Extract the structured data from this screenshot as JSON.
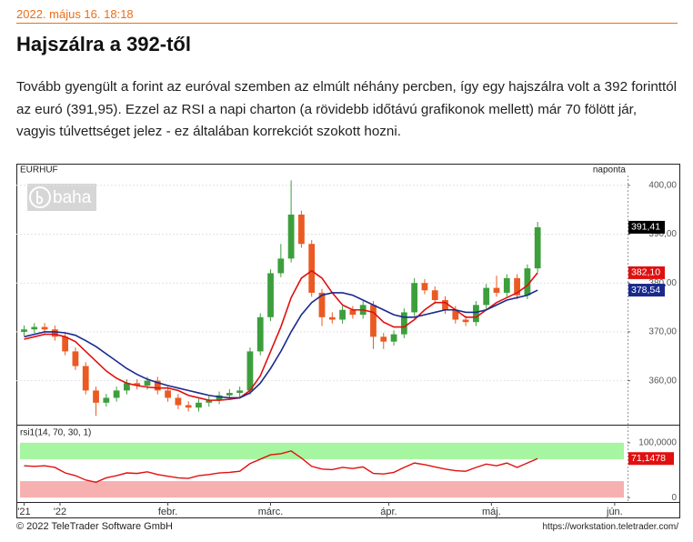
{
  "article": {
    "timestamp": "2022. május 16. 18:18",
    "title": "Hajszálra a 392-től",
    "paragraph": "Tovább gyengült a forint az euróval szemben az elmúlt néhány percben, így egy hajszálra volt a 392 forinttól az euró (391,95). Ezzel az RSI a napi charton (a rövidebb időtávú grafikonok mellett) már 70 fölött jár, vagyis túlvettséget jelez - ez általában korrekciót szokott hozni."
  },
  "chart_data": [
    {
      "type": "candlestick",
      "symbol": "EURHUF",
      "period": "naponta",
      "watermark": "baha",
      "up_color": "#3c9f3c",
      "down_color": "#ea5a22",
      "x": [
        -7,
        -5,
        -3,
        -1,
        1,
        3,
        5,
        7,
        9,
        11,
        13,
        15,
        17,
        19,
        21,
        23,
        25,
        27,
        29,
        31,
        33,
        35,
        37,
        39,
        41,
        43,
        45,
        47,
        49,
        51,
        53,
        55,
        57,
        59,
        61,
        63,
        65,
        67,
        69,
        71,
        73,
        75,
        77,
        79,
        81,
        83,
        85,
        87,
        89,
        91,
        93
      ],
      "open": [
        370,
        370.5,
        371,
        370.5,
        369,
        366,
        363,
        358,
        355.5,
        356.5,
        358,
        359.5,
        359,
        360,
        358,
        356.5,
        355,
        354.5,
        355.5,
        356,
        357,
        357.5,
        358,
        366,
        373,
        382,
        385,
        394,
        388,
        378,
        373,
        372.5,
        374.5,
        373.5,
        375.5,
        369,
        368,
        369.5,
        374,
        380,
        378.5,
        376.5,
        374.5,
        372.5,
        372,
        375.5,
        379,
        378,
        381,
        377.5,
        383
      ],
      "high": [
        371.3,
        371.8,
        371.8,
        371.3,
        369.8,
        366.8,
        363.8,
        358.8,
        357.3,
        358.8,
        360.3,
        360.3,
        360.8,
        360.8,
        358.8,
        357.3,
        355.8,
        356.3,
        356.8,
        357.8,
        358.3,
        358.8,
        366.8,
        373.8,
        382.8,
        388,
        401,
        394.8,
        388.8,
        378.8,
        374,
        375.3,
        375.3,
        376.3,
        376.3,
        369.8,
        370.3,
        374.8,
        381,
        380.8,
        379.3,
        377.3,
        375.3,
        373.3,
        376.3,
        379.8,
        381.5,
        381.8,
        381.8,
        383.8,
        392.5
      ],
      "low": [
        369.2,
        369.7,
        369.7,
        368.2,
        365.2,
        362.2,
        357.2,
        352.8,
        354.7,
        355.7,
        357.2,
        358.2,
        358.2,
        357.2,
        355.7,
        354.2,
        353.7,
        353.7,
        354.7,
        355.2,
        356.2,
        356.7,
        357.2,
        365.2,
        372.2,
        381.2,
        384.2,
        387.2,
        377.2,
        371.2,
        371.7,
        371.7,
        372.7,
        372.7,
        366.5,
        366.5,
        367.2,
        368.7,
        373.2,
        377.7,
        375.7,
        373.7,
        371.7,
        371.2,
        371.2,
        374.7,
        377.2,
        377.2,
        376.7,
        376.7,
        382.2
      ],
      "close": [
        370.5,
        371,
        370.5,
        369,
        366,
        363,
        358,
        355.5,
        356.5,
        358,
        359.5,
        359,
        360,
        358,
        356.5,
        355,
        354.5,
        355.5,
        356,
        357,
        357.5,
        358,
        366,
        373,
        382,
        385,
        394,
        388,
        378,
        373,
        372.5,
        374.5,
        373.5,
        375.5,
        369,
        368,
        369.5,
        374,
        380,
        378.5,
        376.5,
        374.5,
        372.5,
        372,
        375.5,
        379,
        378,
        381,
        377.5,
        383,
        391.41
      ],
      "close_label": "391,41",
      "series": [
        {
          "color": "#e01010",
          "last_label": "382,10",
          "values": [
            368.5,
            369,
            369.5,
            369.5,
            369,
            368,
            366,
            364,
            362,
            360.5,
            359.5,
            359,
            358.7,
            358.5,
            358.5,
            358,
            357,
            356.5,
            356,
            356,
            356.2,
            356.5,
            358,
            361,
            366,
            371,
            377,
            381,
            382.5,
            381,
            378,
            375.5,
            374.5,
            374.5,
            374,
            372,
            371,
            371,
            372.5,
            374.5,
            376,
            376,
            374.5,
            373,
            373,
            374.5,
            376,
            377,
            378,
            379.5,
            382.1
          ]
        },
        {
          "color": "#1a2a8c",
          "last_label": "378,54",
          "values": [
            369,
            369.5,
            370,
            370,
            369.8,
            369.3,
            368.2,
            367,
            365.5,
            364,
            362.5,
            361.3,
            360.3,
            359.6,
            359,
            358.5,
            358,
            357.5,
            357,
            356.7,
            356.5,
            356.5,
            357.5,
            359.5,
            362.5,
            366,
            370,
            373.5,
            376,
            377.5,
            378,
            378,
            377.5,
            376.5,
            375.5,
            374.5,
            373.5,
            373,
            373,
            373.5,
            374,
            374.5,
            374.5,
            374,
            374,
            374.5,
            375.5,
            376.5,
            377,
            377.5,
            378.54
          ]
        }
      ],
      "xlim": [
        -8.5,
        110.5
      ],
      "ylim": [
        351,
        402
      ],
      "yticks": [
        {
          "value": 400,
          "label": "400,00"
        },
        {
          "value": 390,
          "label": "390,00"
        },
        {
          "value": 380,
          "label": "380,00"
        },
        {
          "value": 370,
          "label": "370,00"
        },
        {
          "value": 360,
          "label": "360,00"
        }
      ],
      "grid": true
    },
    {
      "type": "line",
      "label": "rsi1(14, 70, 30, 1)",
      "overbought": 70,
      "oversold": 30,
      "overbought_color": "#a6f5a0",
      "oversold_color": "#f7b0b0",
      "color": "#e01010",
      "x": [
        -7,
        -5,
        -3,
        -1,
        1,
        3,
        5,
        7,
        9,
        11,
        13,
        15,
        17,
        19,
        21,
        23,
        25,
        27,
        29,
        31,
        33,
        35,
        37,
        39,
        41,
        43,
        45,
        47,
        49,
        51,
        53,
        55,
        57,
        59,
        61,
        63,
        65,
        67,
        69,
        71,
        73,
        75,
        77,
        79,
        81,
        83,
        85,
        87,
        89,
        91,
        93
      ],
      "values": [
        58,
        57,
        58,
        55,
        45,
        40,
        32,
        28,
        36,
        40,
        45,
        44,
        47,
        42,
        39,
        36,
        35,
        40,
        42,
        45,
        46,
        48,
        62,
        70,
        78,
        80,
        85,
        72,
        57,
        52,
        51,
        55,
        53,
        56,
        44,
        43,
        46,
        55,
        63,
        60,
        56,
        52,
        49,
        48,
        55,
        61,
        58,
        63,
        55,
        63,
        71.1478
      ],
      "last_label": "71,1478",
      "xlim": [
        -8.5,
        110.5
      ],
      "ylim": [
        -8,
        108
      ],
      "yticks": [
        {
          "value": 100,
          "label": "100,0000"
        },
        0
      ],
      "xticks": [
        {
          "value": -7,
          "label": "'21"
        },
        {
          "value": 0,
          "label": "'22"
        },
        {
          "value": 21,
          "label": "febr."
        },
        {
          "value": 41,
          "label": "márc."
        },
        {
          "value": 64,
          "label": "ápr."
        },
        {
          "value": 84,
          "label": "máj."
        },
        {
          "value": 108,
          "label": "jún."
        }
      ]
    }
  ],
  "footer": {
    "copyright": "© 2022 TeleTrader Software GmbH",
    "url": "https://workstation.teletrader.com/"
  }
}
